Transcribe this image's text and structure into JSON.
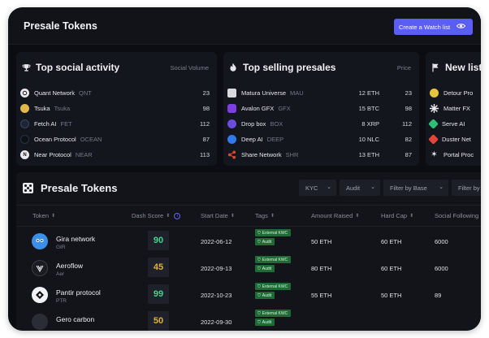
{
  "header": {
    "title": "Presale Tokens",
    "watch_button": "Create a Watch list"
  },
  "social_card": {
    "title": "Top social activity",
    "column": "Social Volume",
    "items": [
      {
        "name": "Quant Network",
        "ticker": "QNT",
        "value": "23",
        "color": "#e9e9ee",
        "icon": "quant-icon"
      },
      {
        "name": "Tsuka",
        "ticker": "Tsuka",
        "value": "98",
        "color": "#e0b84a",
        "icon": "tsuka-icon"
      },
      {
        "name": "Fetch AI",
        "ticker": "FET",
        "value": "112",
        "color": "#1d2436",
        "icon": "fetch-icon"
      },
      {
        "name": "Ocean Protocol",
        "ticker": "OCEAN",
        "value": "87",
        "color": "#0c1218",
        "icon": "ocean-icon"
      },
      {
        "name": "Near Protocol",
        "ticker": "NEAR",
        "value": "113",
        "color": "#e9e9ee",
        "icon": "near-icon"
      }
    ]
  },
  "presale_card": {
    "title": "Top selling presales",
    "column": "Price",
    "items": [
      {
        "name": "Matura Universe",
        "ticker": "MAU",
        "amount": "12 ETH",
        "value": "23",
        "color": "#d8d8de",
        "icon": "matura-icon"
      },
      {
        "name": "Avalon GFX",
        "ticker": "GFX",
        "amount": "15 BTC",
        "value": "98",
        "color": "#7b3fe4",
        "icon": "avalon-icon"
      },
      {
        "name": "Drop box",
        "ticker": "BOX",
        "amount": "8 XRP",
        "value": "112",
        "color": "#6b4be0",
        "icon": "dropbox-icon"
      },
      {
        "name": "Deep AI",
        "ticker": "DEEP",
        "amount": "10 NLC",
        "value": "82",
        "color": "#2f7bea",
        "icon": "deep-ai-icon"
      },
      {
        "name": "Share Network",
        "ticker": "SHR",
        "amount": "13 ETH",
        "value": "87",
        "color": "#e0462f",
        "icon": "share-network-icon"
      }
    ]
  },
  "new_card": {
    "title": "New list",
    "items": [
      {
        "name": "Detour Pro",
        "color": "#e7c43a",
        "icon": "detour-icon"
      },
      {
        "name": "Matter FX",
        "color": "#e9e9ee",
        "icon": "matter-icon"
      },
      {
        "name": "Serve AI",
        "color": "#2bbf7a",
        "icon": "serve-icon"
      },
      {
        "name": "Duster Net",
        "color": "#e2463b",
        "icon": "duster-icon"
      },
      {
        "name": "Portal Proc",
        "color": "#e9e9ee",
        "icon": "portal-icon"
      }
    ]
  },
  "table": {
    "title": "Presale Tokens",
    "filters": [
      "KYC",
      "Audit",
      "Filter by Base",
      "Filter by"
    ],
    "columns": [
      "Token",
      "Dash Score",
      "Start Date",
      "Tags",
      "Amount Raised",
      "Hard Cap",
      "Social Following"
    ],
    "tag_labels": {
      "kwc": "External KWC",
      "audit": "Audit"
    },
    "rows": [
      {
        "name": "Gira network",
        "symbol": "GIR",
        "score": "90",
        "score_color": "#3dd68c",
        "start": "2022-06-12",
        "raised": "50 ETH",
        "cap": "60 ETH",
        "social": "6000",
        "logo_color": "#3b8fe8",
        "icon": "gira-icon"
      },
      {
        "name": "Aeroflow",
        "symbol": "Aer",
        "score": "45",
        "score_color": "#e2b23a",
        "start": "2022-09-13",
        "raised": "80 ETH",
        "cap": "60 ETH",
        "social": "6000",
        "logo_color": "#1a1c22",
        "icon": "aeroflow-icon"
      },
      {
        "name": "Pantir protocol",
        "symbol": "PTR",
        "score": "99",
        "score_color": "#3dd68c",
        "start": "2022-10-23",
        "raised": "55 ETH",
        "cap": "50 ETH",
        "social": "89",
        "logo_color": "#f2f2f5",
        "icon": "pantir-icon"
      },
      {
        "name": "Gero carbon",
        "symbol": "",
        "score": "50",
        "score_color": "#e2b23a",
        "start": "2022-09-30",
        "raised": "",
        "cap": "",
        "social": "",
        "logo_color": "#2a2d36",
        "icon": "gero-icon"
      }
    ]
  }
}
